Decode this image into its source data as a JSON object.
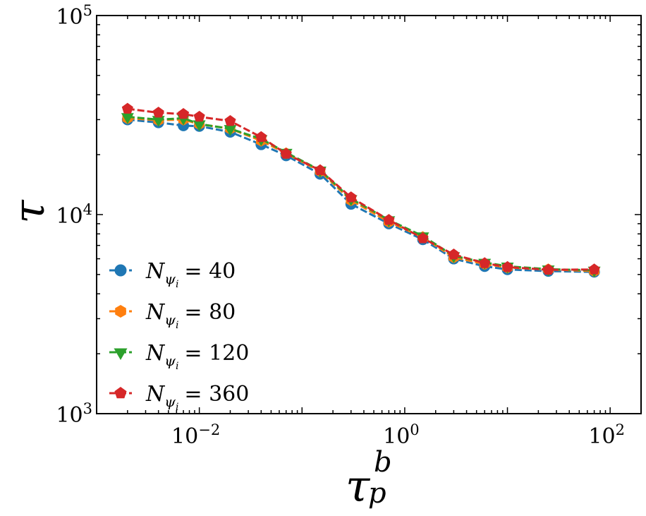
{
  "chart_data": {
    "type": "line",
    "xscale": "log",
    "yscale": "log",
    "xlim": [
      0.001,
      200
    ],
    "ylim": [
      1000,
      100000
    ],
    "xticks": [
      {
        "value": 0.01,
        "base": "10",
        "exp": "−2"
      },
      {
        "value": 1,
        "base": "10",
        "exp": "0"
      },
      {
        "value": 100,
        "base": "10",
        "exp": "2"
      }
    ],
    "yticks": [
      {
        "value": 1000,
        "base": "10",
        "exp": "3"
      },
      {
        "value": 10000,
        "base": "10",
        "exp": "4"
      },
      {
        "value": 100000,
        "base": "10",
        "exp": "5"
      }
    ],
    "xlabel": {
      "main": "τ",
      "sup": "b",
      "sub": "p"
    },
    "ylabel": "τ",
    "grid": false,
    "legend_position": "lower-left",
    "x": [
      0.002,
      0.004,
      0.007,
      0.01,
      0.02,
      0.04,
      0.07,
      0.15,
      0.3,
      0.7,
      1.5,
      3,
      6,
      10,
      25,
      70
    ],
    "series": [
      {
        "label_main": "N",
        "label_sub": "ψ",
        "label_subsub": "i",
        "label_value": "= 40",
        "color": "#1f77b4",
        "marker": "circle",
        "values": [
          30000,
          29000,
          28000,
          27800,
          26000,
          22500,
          19800,
          16000,
          11300,
          9000,
          7500,
          6000,
          5500,
          5300,
          5200,
          5150
        ]
      },
      {
        "label_main": "N",
        "label_sub": "ψ",
        "label_subsub": "i",
        "label_value": "= 80",
        "color": "#ff7f0e",
        "marker": "hexagon",
        "values": [
          30500,
          29800,
          30000,
          28500,
          27000,
          23500,
          20300,
          16500,
          11800,
          9200,
          7700,
          6100,
          5650,
          5420,
          5300,
          5200
        ]
      },
      {
        "label_main": "N",
        "label_sub": "ψ",
        "label_subsub": "i",
        "label_value": "= 120",
        "color": "#2ca02c",
        "marker": "triangle-down",
        "values": [
          31000,
          30000,
          30500,
          28500,
          27000,
          24000,
          20500,
          16700,
          12000,
          9400,
          7800,
          6200,
          5750,
          5500,
          5320,
          5250
        ]
      },
      {
        "label_main": "N",
        "label_sub": "ψ",
        "label_subsub": "i",
        "label_value": "= 360",
        "color": "#d62728",
        "marker": "pentagon",
        "values": [
          34000,
          32500,
          32000,
          31000,
          29500,
          24500,
          20200,
          16700,
          12200,
          9400,
          7600,
          6300,
          5700,
          5450,
          5280,
          5300
        ]
      }
    ]
  }
}
